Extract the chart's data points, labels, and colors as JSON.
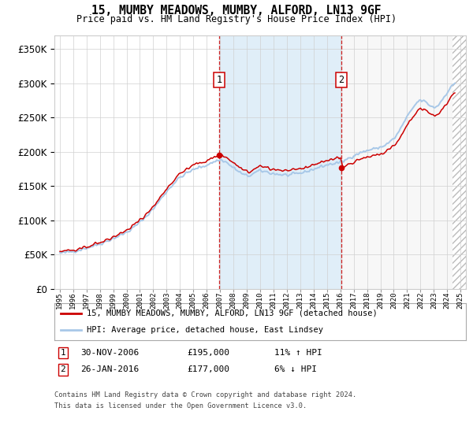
{
  "title": "15, MUMBY MEADOWS, MUMBY, ALFORD, LN13 9GF",
  "subtitle": "Price paid vs. HM Land Registry's House Price Index (HPI)",
  "legend_line1": "15, MUMBY MEADOWS, MUMBY, ALFORD, LN13 9GF (detached house)",
  "legend_line2": "HPI: Average price, detached house, East Lindsey",
  "annotation1_date": "30-NOV-2006",
  "annotation1_price": "£195,000",
  "annotation1_hpi": "11% ↑ HPI",
  "annotation2_date": "26-JAN-2016",
  "annotation2_price": "£177,000",
  "annotation2_hpi": "6% ↓ HPI",
  "footer1": "Contains HM Land Registry data © Crown copyright and database right 2024.",
  "footer2": "This data is licensed under the Open Government Licence v3.0.",
  "sale1_year": 2006.92,
  "sale1_price": 195000,
  "sale2_year": 2016.07,
  "sale2_price": 177000,
  "hpi_color": "#a8c8e8",
  "price_color": "#cc0000",
  "vline_color": "#cc0000",
  "background_color": "#ffffff",
  "ylim": [
    0,
    370000
  ],
  "xlim_start": 1994.6,
  "xlim_end": 2025.4,
  "hatch_start": 2024.42
}
